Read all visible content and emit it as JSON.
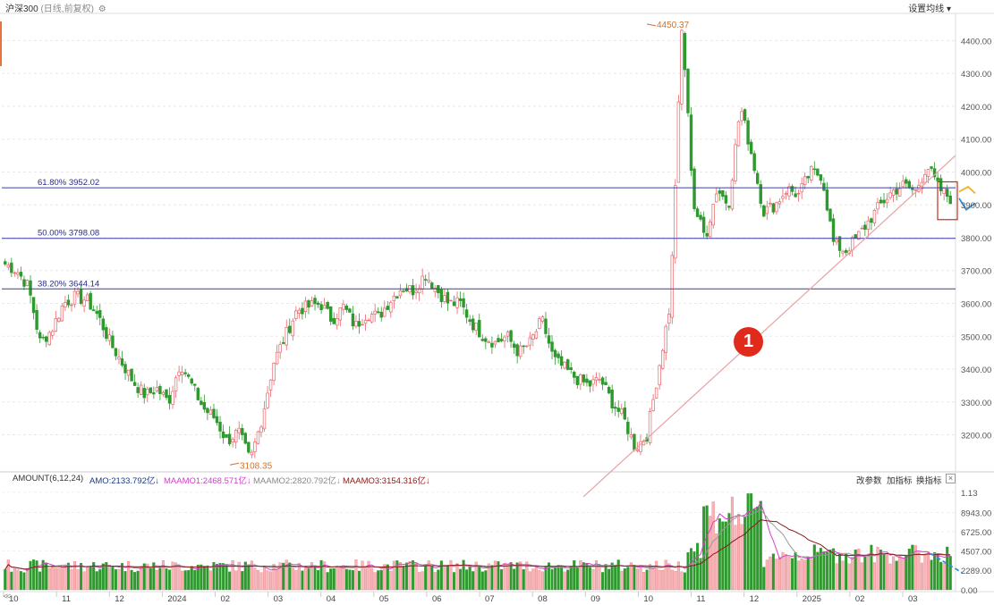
{
  "header": {
    "title": "沪深300",
    "subtitle": "(日线,前复权)",
    "settings_label": "设置均线",
    "settings_arrow": "▾",
    "gear_icon": "gear-icon"
  },
  "colors": {
    "up": "#e8646a",
    "down": "#2e9a2e",
    "fib_line": "#3b3ba8",
    "trend_line": "#e8a1a1",
    "annotation": "#d0722a",
    "ma1": "#d040c8",
    "ma2": "#999999",
    "ma3": "#8b1a1a",
    "highlight_box": "#c0301f",
    "arrow_blue": "#2f8fdc",
    "arrow_yellow": "#f0b020"
  },
  "indicator": {
    "name": "AMOUNT(6,12,24)",
    "amo": "AMO:2133.792亿",
    "ma1": "MAAMO1:2468.571亿",
    "ma2": "MAAMO2:2820.792亿",
    "ma3": "MAAMO3:3154.316亿",
    "down_arrow": "↓",
    "buttons": [
      "改参数",
      "加指标",
      "换指标"
    ],
    "close": "×"
  },
  "nav": {
    "prev": "≪"
  },
  "marker": {
    "label": "1"
  },
  "chart_data": {
    "type": "candlestick",
    "title": "沪深300",
    "price_axis": {
      "ylim": [
        3090,
        4480
      ],
      "ticks": [
        "4400.00",
        "4300.00",
        "4200.00",
        "4100.00",
        "4000.00",
        "3900.00",
        "3800.00",
        "3700.00",
        "3600.00",
        "3500.00",
        "3400.00",
        "3300.00",
        "3200.00"
      ],
      "tick_values": [
        4400,
        4300,
        4200,
        4100,
        4000,
        3900,
        3800,
        3700,
        3600,
        3500,
        3400,
        3300,
        3200
      ]
    },
    "volume_axis": {
      "ylim": [
        0,
        12000
      ],
      "ticks": [
        "1.13",
        "8943.00",
        "6725.00",
        "4507.00",
        "2289.00",
        "0.00"
      ],
      "tick_values": [
        11300,
        8943,
        6725,
        4507,
        2289,
        0
      ]
    },
    "x_labels": [
      "10",
      "11",
      "12",
      "2024",
      "02",
      "03",
      "04",
      "05",
      "06",
      "07",
      "08",
      "09",
      "10",
      "11",
      "12",
      "2025",
      "02",
      "03"
    ],
    "fib_levels": [
      {
        "label": "61.80% 3952.02",
        "value": 3952.02
      },
      {
        "label": "50.00% 3798.08",
        "value": 3798.08
      },
      {
        "label": "38.20% 3644.14",
        "value": 3644.14
      }
    ],
    "annotations": [
      {
        "label": "4450.37",
        "value": 4450.37,
        "type": "high"
      },
      {
        "label": "3108.35",
        "value": 3108.35,
        "type": "low"
      }
    ],
    "trend_line": {
      "start_value": 3120,
      "end_value": 4050
    },
    "price_path": [
      3720,
      3700,
      3650,
      3480,
      3520,
      3600,
      3620,
      3610,
      3560,
      3480,
      3420,
      3360,
      3320,
      3340,
      3300,
      3420,
      3350,
      3280,
      3250,
      3180,
      3210,
      3120,
      3250,
      3420,
      3500,
      3580,
      3590,
      3600,
      3550,
      3590,
      3530,
      3570,
      3560,
      3610,
      3650,
      3640,
      3690,
      3640,
      3600,
      3600,
      3540,
      3500,
      3480,
      3500,
      3450,
      3480,
      3550,
      3430,
      3400,
      3370,
      3350,
      3370,
      3300,
      3250,
      3160,
      3200,
      3400,
      3600,
      4450,
      3900,
      3800,
      3950,
      3900,
      4200,
      4050,
      3880,
      3900,
      3950,
      3930,
      4000,
      3990,
      3780,
      3760,
      3800,
      3850,
      3900,
      3940,
      3960,
      3940,
      4020,
      3950,
      3920
    ]
  }
}
